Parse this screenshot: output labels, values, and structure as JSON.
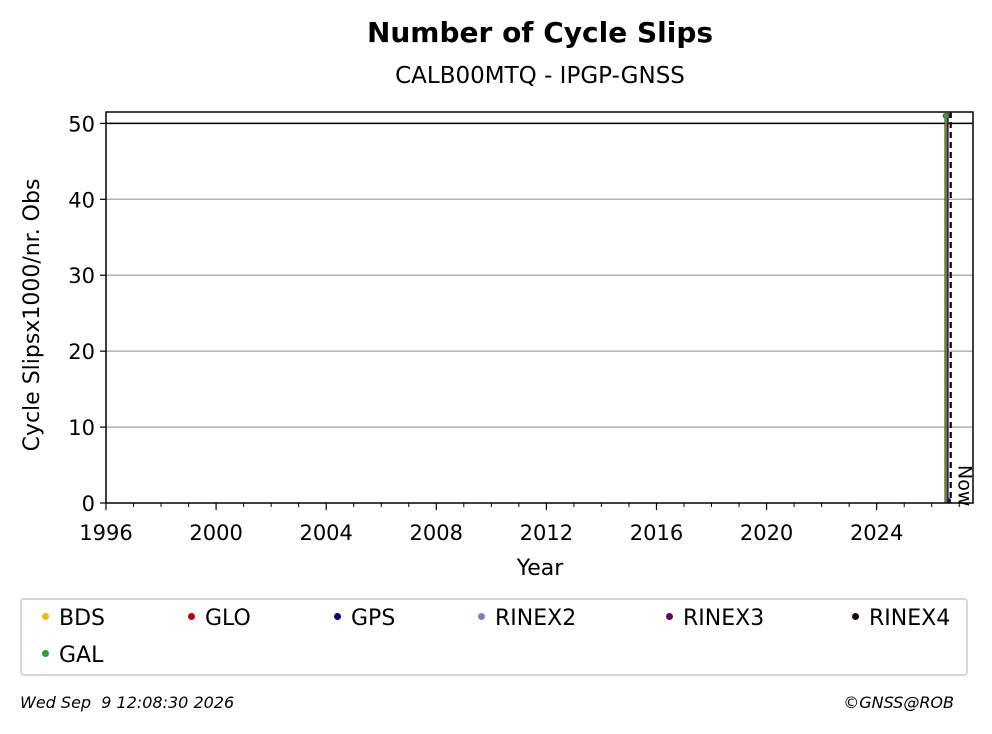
{
  "chart_data": {
    "type": "scatter",
    "title": "Number of Cycle Slips",
    "subtitle": "CALB00MTQ - IPGP-GNSS",
    "xlabel": "Year",
    "ylabel": "Cycle Slipsx1000/nr. Obs",
    "xlim": [
      1996,
      2027.5
    ],
    "ylim": [
      0,
      51.5
    ],
    "xticks": [
      1996,
      2000,
      2004,
      2008,
      2012,
      2016,
      2020,
      2024
    ],
    "yticks": [
      0,
      10,
      20,
      30,
      40,
      50
    ],
    "grid": "horizontal",
    "threshold_line": 50,
    "now_marker": {
      "x": 2026.69,
      "label": "Now"
    },
    "series": [
      {
        "name": "BDS",
        "color": "#f5b800",
        "x": [
          2026.5
        ],
        "y": [
          51
        ]
      },
      {
        "name": "GLO",
        "color": "#c00000",
        "x": [
          2026.5
        ],
        "y": [
          51
        ]
      },
      {
        "name": "GPS",
        "color": "#00008b",
        "x": [
          2026.6
        ],
        "y": [
          0.3
        ]
      },
      {
        "name": "RINEX2",
        "color": "#8878c0",
        "x": [],
        "y": []
      },
      {
        "name": "RINEX3",
        "color": "#6b006b",
        "x": [
          2026.58
        ],
        "y": [
          51
        ]
      },
      {
        "name": "RINEX4",
        "color": "#1a0010",
        "x": [],
        "y": []
      },
      {
        "name": "GAL",
        "color": "#2ca02c",
        "x": [
          2026.52
        ],
        "y": [
          51
        ]
      }
    ]
  },
  "footer": {
    "timestamp": "Wed Sep  9 12:08:30 2026",
    "credit": "©GNSS@ROB"
  }
}
